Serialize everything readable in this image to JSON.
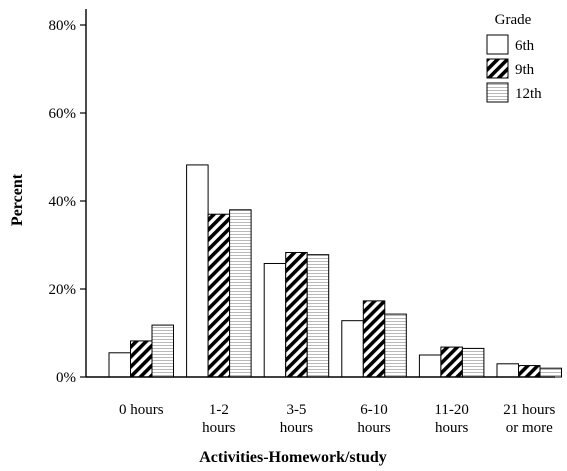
{
  "chart_data": {
    "type": "bar",
    "xlabel": "Activities-Homework/study",
    "ylabel": "Percent",
    "ylim": [
      0,
      85
    ],
    "yticks": [
      0,
      20,
      40,
      60,
      80
    ],
    "ytick_labels": [
      "0%",
      "20%",
      "40%",
      "60%",
      "80%"
    ],
    "categories": [
      [
        "0 hours"
      ],
      [
        "1-2",
        "hours"
      ],
      [
        "3-5",
        "hours"
      ],
      [
        "6-10",
        "hours"
      ],
      [
        "11-20",
        "hours"
      ],
      [
        "21 hours",
        "or more"
      ]
    ],
    "legend": {
      "title": "Grade",
      "position": "top-right"
    },
    "series": [
      {
        "name": "6th",
        "pattern": "solid-white",
        "values": [
          5.5,
          48.2,
          25.8,
          12.8,
          5.0,
          3.0
        ]
      },
      {
        "name": "9th",
        "pattern": "diagonal-hatch",
        "values": [
          8.2,
          37.0,
          28.3,
          17.3,
          6.8,
          2.6
        ]
      },
      {
        "name": "12th",
        "pattern": "fine-stripes",
        "values": [
          11.8,
          38.0,
          27.8,
          14.3,
          6.5,
          2.0
        ]
      }
    ]
  }
}
